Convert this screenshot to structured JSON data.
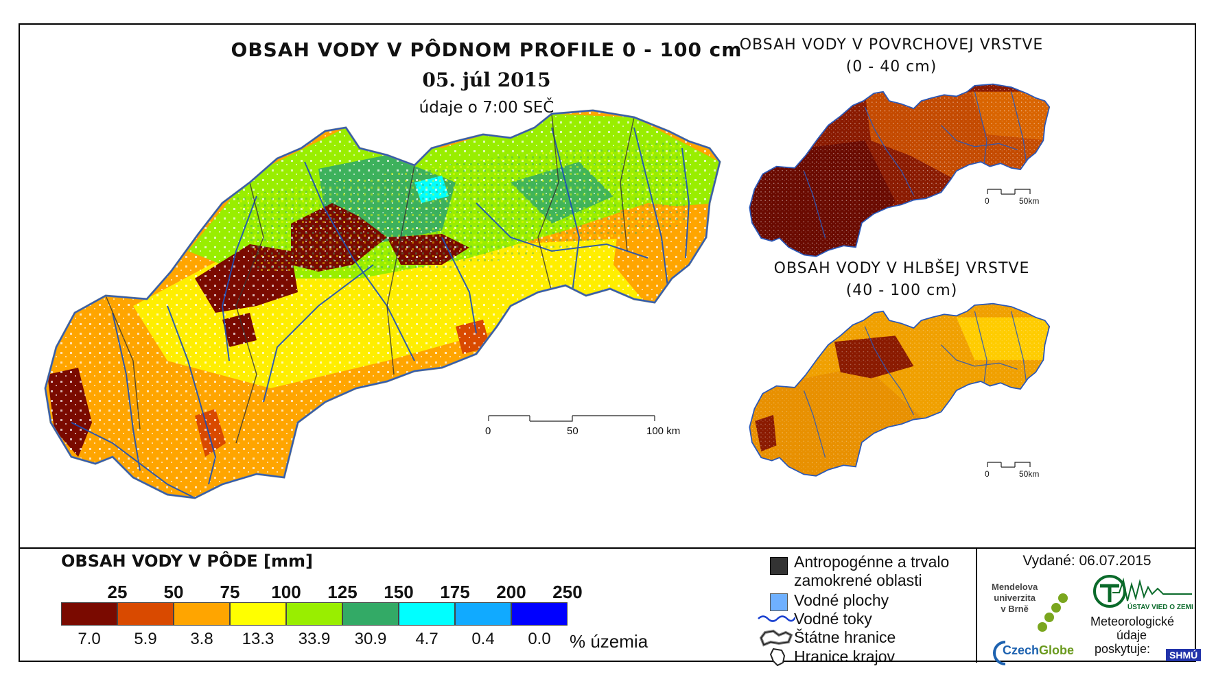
{
  "main_title": "OBSAH VODY V PÔDNOM PROFILE 0 - 100 cm",
  "date": "05. júl 2015",
  "time_note": "údaje o 7:00 SEČ",
  "surface": {
    "title_line1": "OBSAH VODY V POVRCHOVEJ VRSTVE",
    "title_line2": "(0 - 40 cm)"
  },
  "deep": {
    "title_line1": "OBSAH VODY V HLBŠEJ VRSTVE",
    "title_line2": "(40 - 100 cm)"
  },
  "main_scale": {
    "t0": "0",
    "t50": "50",
    "t100": "100 km"
  },
  "small_scale": {
    "t0": "0",
    "t50": "50km"
  },
  "legend": {
    "title": "OBSAH VODY V PÔDE [mm]",
    "unit": "% územia",
    "boundaries": [
      "25",
      "50",
      "75",
      "100",
      "125",
      "150",
      "175",
      "200",
      "250"
    ],
    "classes": [
      {
        "color": "#7a0a00",
        "percent": "7.0"
      },
      {
        "color": "#d94a00",
        "percent": "5.9"
      },
      {
        "color": "#ffa500",
        "percent": "3.8"
      },
      {
        "color": "#ffff00",
        "percent": "13.3"
      },
      {
        "color": "#99ee00",
        "percent": "33.9"
      },
      {
        "color": "#33aa66",
        "percent": "30.9"
      },
      {
        "color": "#00ffff",
        "percent": "4.7"
      },
      {
        "color": "#11aaff",
        "percent": "0.4"
      },
      {
        "color": "#0000ff",
        "percent": "0.0"
      }
    ]
  },
  "symbols": {
    "anthropogenic_line1": "Antropogénne a trvalo",
    "anthropogenic_line2": "zamokrené oblasti",
    "water_areas": "Vodné plochy",
    "water_streams": "Vodné toky",
    "state_borders": "Štátne hranice",
    "region_borders": "Hranice krajov"
  },
  "issued": "Vydané: 06.07.2015",
  "logos": {
    "mendel_line1": "Mendelova",
    "mendel_line2": "univerzita",
    "mendel_line3": "v Brně",
    "czechglobe_a": "Czech",
    "czechglobe_b": "Globe",
    "uvz": "ÚSTAV VIED O ZEMI",
    "meteo_line1": "Meteorologické",
    "meteo_line2": "údaje",
    "meteo_line3": "poskytuje:",
    "shmu": "SHMÚ"
  }
}
